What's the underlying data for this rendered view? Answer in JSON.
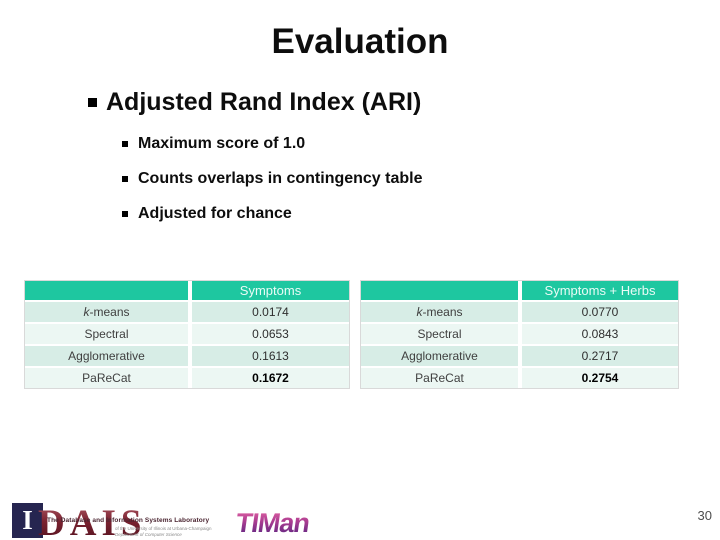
{
  "slide": {
    "title": "Evaluation",
    "bullet": {
      "label": "Adjusted Rand Index (ARI)"
    },
    "sub_bullets": [
      "Maximum score of 1.0",
      "Counts overlaps in contingency table",
      "Adjusted for chance"
    ],
    "page_number": "30"
  },
  "tables": [
    {
      "header": [
        "",
        "Symptoms"
      ],
      "rows": [
        {
          "label": "k-means",
          "italic_first": true,
          "value": "0.0174",
          "bold": false
        },
        {
          "label": "Spectral",
          "italic_first": false,
          "value": "0.0653",
          "bold": false
        },
        {
          "label": "Agglomerative",
          "italic_first": false,
          "value": "0.1613",
          "bold": false
        },
        {
          "label": "PaReCat",
          "italic_first": false,
          "value": "0.1672",
          "bold": true
        }
      ]
    },
    {
      "header": [
        "",
        "Symptoms + Herbs"
      ],
      "rows": [
        {
          "label": "k-means",
          "italic_first": true,
          "value": "0.0770",
          "bold": false
        },
        {
          "label": "Spectral",
          "italic_first": false,
          "value": "0.0843",
          "bold": false
        },
        {
          "label": "Agglomerative",
          "italic_first": false,
          "value": "0.2717",
          "bold": false
        },
        {
          "label": "PaReCat",
          "italic_first": false,
          "value": "0.2754",
          "bold": true
        }
      ]
    }
  ],
  "colors": {
    "table_header_bg": "#1EC7A0",
    "table_header_text": "#E9FBF6",
    "table_row_dark": "#D7EDE6",
    "table_row_light": "#ECF7F3",
    "dais_maroon": "#7A2230",
    "dais_navy": "#262550",
    "timan_purple": "#4D1F7E"
  },
  "footer": {
    "dais": {
      "column_glyph": "I",
      "letters": "DAIS",
      "lab_name": "The Database and Information Systems Laboratory",
      "sub_line1": "of the University of Illinois at Urbana-Champaign",
      "sub_line2": "Department of Computer Science"
    },
    "timan_letters": "TIMan"
  }
}
